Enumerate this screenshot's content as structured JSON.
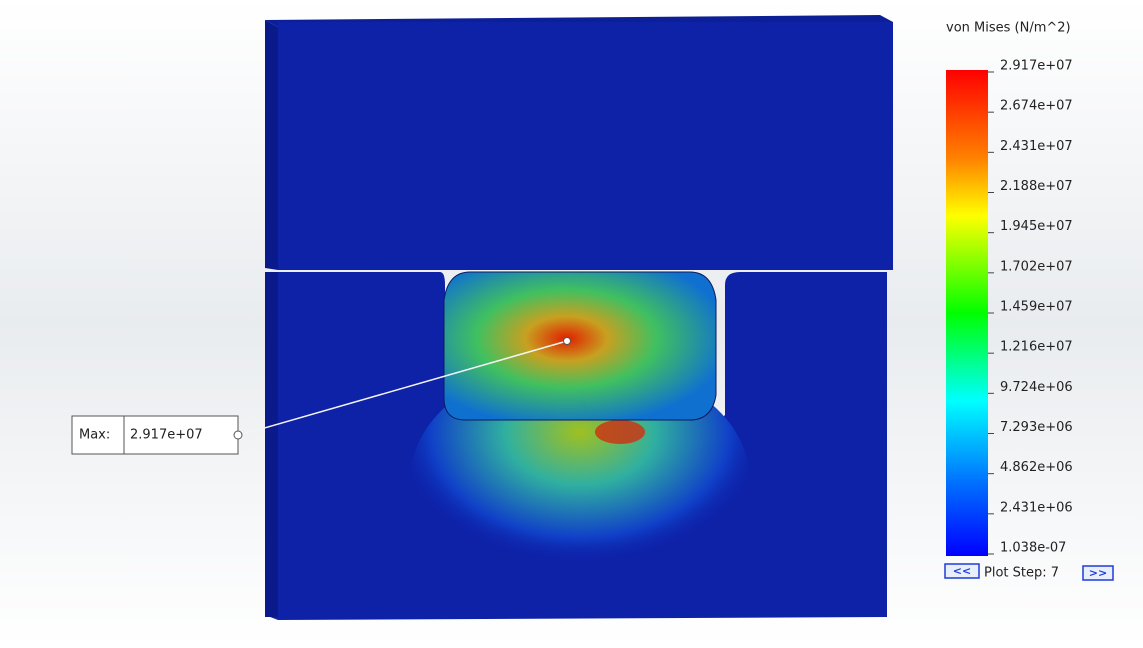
{
  "legend": {
    "title": "von Mises (N/m^2)",
    "labels": [
      "2.917e+07",
      "2.674e+07",
      "2.431e+07",
      "2.188e+07",
      "1.945e+07",
      "1.702e+07",
      "1.459e+07",
      "1.216e+07",
      "9.724e+06",
      "7.293e+06",
      "4.862e+06",
      "2.431e+06",
      "1.038e-07"
    ]
  },
  "probe": {
    "label": "Max:",
    "value": "2.917e+07"
  },
  "plot_step": {
    "text": "Plot Step: 7",
    "prev": "<<",
    "next": ">>"
  }
}
